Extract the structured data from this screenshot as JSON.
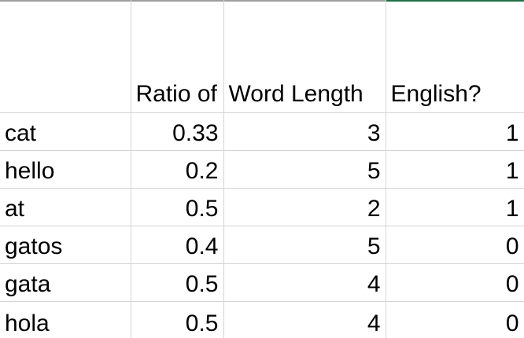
{
  "sheet": {
    "headers": [
      "",
      "Ratio of",
      "Word Length",
      "English?"
    ],
    "rows": [
      {
        "word": "cat",
        "ratio": "0.33",
        "length": "3",
        "english": "1"
      },
      {
        "word": "hello",
        "ratio": "0.2",
        "length": "5",
        "english": "1"
      },
      {
        "word": "at",
        "ratio": "0.5",
        "length": "2",
        "english": "1"
      },
      {
        "word": "gatos",
        "ratio": "0.4",
        "length": "5",
        "english": "0"
      },
      {
        "word": "gata",
        "ratio": "0.5",
        "length": "4",
        "english": "0"
      },
      {
        "word": "hola",
        "ratio": "0.5",
        "length": "4",
        "english": "0"
      }
    ]
  },
  "colors": {
    "gridline": "#d4d4d4",
    "selection_accent": "#1e7145"
  }
}
